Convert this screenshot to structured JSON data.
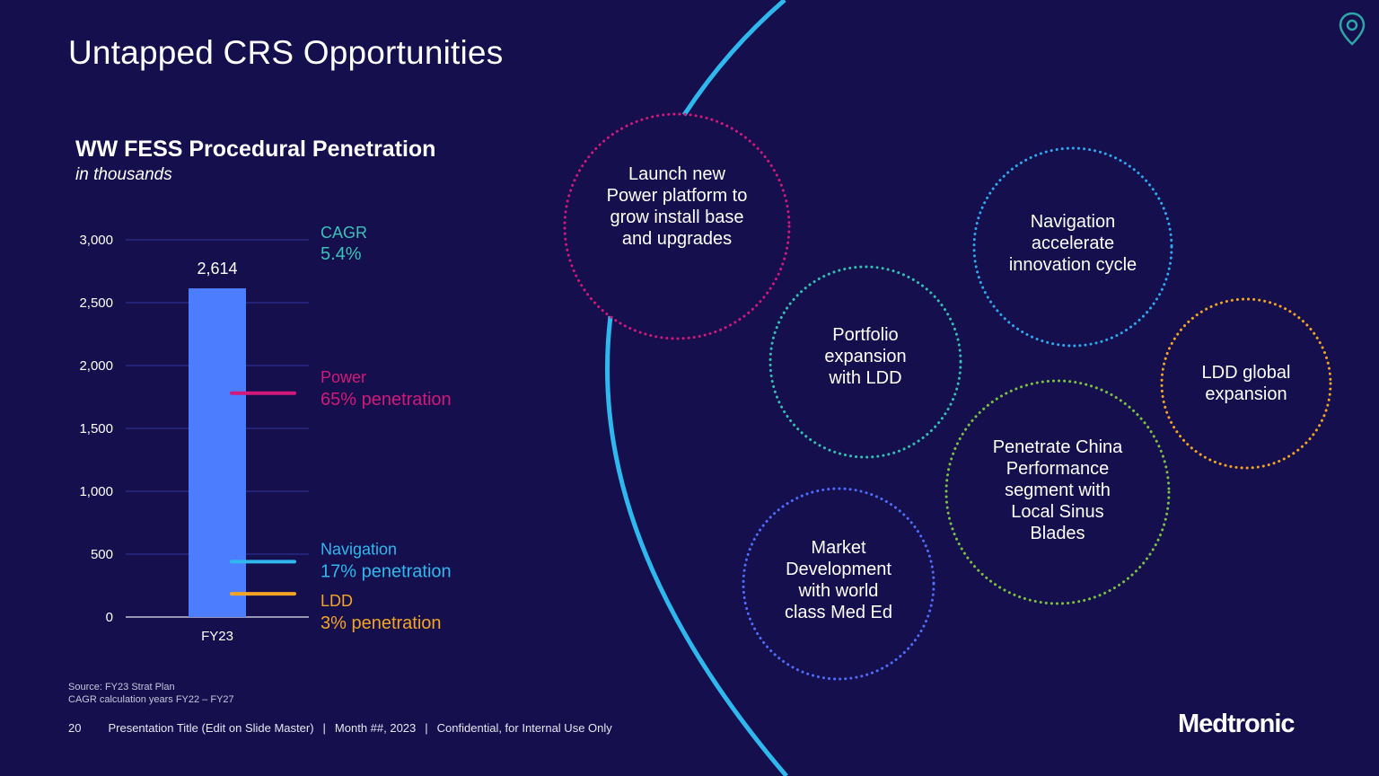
{
  "slide": {
    "title": "Untapped CRS Opportunities",
    "page_number": "20",
    "footer_presentation": "Presentation Title (Edit on Slide Master)",
    "footer_date": "Month ##, 2023",
    "footer_confidential": "Confidential, for Internal Use Only",
    "footer_separator": "|",
    "source_line1": "Source: FY23 Strat Plan",
    "source_line2": "CAGR calculation years FY22 – FY27",
    "brand": "Medtronic",
    "icon": "location-pin-icon"
  },
  "colors": {
    "background": "#160f4d",
    "bar": "#4c7dff",
    "gridline": "#2e2f8c",
    "cagr": "#3bc1b8",
    "power": "#d0197a",
    "navigation": "#2fb8ee",
    "ldd": "#f4a425",
    "arc": "#2fb8ee"
  },
  "chart_data": {
    "type": "bar",
    "title": "WW FESS Procedural Penetration",
    "subtitle": "in thousands",
    "categories": [
      "FY23"
    ],
    "values": [
      2614
    ],
    "value_labels": [
      "2,614"
    ],
    "ylim": [
      0,
      3000
    ],
    "yticks": [
      0,
      500,
      1000,
      1500,
      2000,
      2500,
      3000
    ],
    "ytick_labels": [
      "0",
      "500",
      "1,000",
      "1,500",
      "2,000",
      "2,500",
      "3,000"
    ],
    "grid": true,
    "xlabel": "",
    "ylabel": "",
    "cagr": {
      "label": "CAGR",
      "value": "5.4%"
    },
    "markers": [
      {
        "name": "Power",
        "value": 1780,
        "label": "Power",
        "sublabel": "65% penetration",
        "color": "#d0197a"
      },
      {
        "name": "Navigation",
        "value": 440,
        "label": "Navigation",
        "sublabel": "17% penetration",
        "color": "#2fb8ee"
      },
      {
        "name": "LDD",
        "value": 185,
        "label": "LDD",
        "sublabel": "3% penetration",
        "color": "#f4a425"
      }
    ]
  },
  "opportunities": [
    {
      "key": "power-platform",
      "text": "Launch new Power platform to grow install base and upgrades",
      "lines": [
        "Launch new",
        "Power platform to",
        "grow install base",
        "and upgrades"
      ],
      "color": "#d0197a"
    },
    {
      "key": "navigation",
      "text": "Navigation accelerate innovation cycle",
      "lines": [
        "Navigation",
        "accelerate",
        "innovation cycle"
      ],
      "color": "#2fa8f0"
    },
    {
      "key": "portfolio-ldd",
      "text": "Portfolio expansion with LDD",
      "lines": [
        "Portfolio",
        "expansion",
        "with LDD"
      ],
      "color": "#35c0b4"
    },
    {
      "key": "ldd-global",
      "text": "LDD global expansion",
      "lines": [
        "LDD global",
        "expansion"
      ],
      "color": "#f4a425"
    },
    {
      "key": "china",
      "text": "Penetrate China Performance segment with Local Sinus Blades",
      "lines": [
        "Penetrate China",
        "Performance",
        "segment with",
        "Local Sinus",
        "Blades"
      ],
      "color": "#7cc242"
    },
    {
      "key": "med-ed",
      "text": "Market Development with world class Med Ed",
      "lines": [
        "Market",
        "Development",
        "with world",
        "class Med Ed"
      ],
      "color": "#4c6dff"
    }
  ]
}
